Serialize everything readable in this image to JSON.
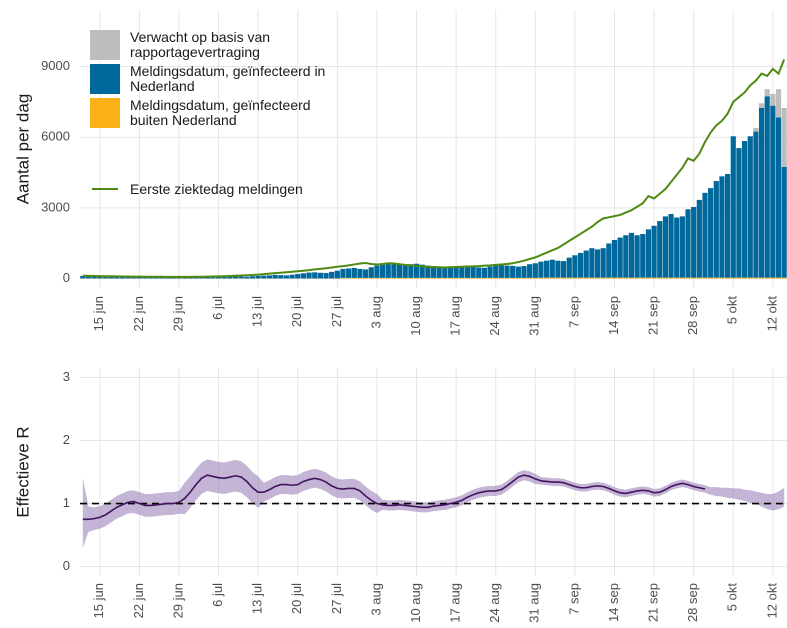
{
  "chart_data": [
    {
      "type": "bar",
      "ylabel": "Aantal per dag",
      "categories": [
        null,
        null,
        null,
        "15 jun",
        null,
        null,
        null,
        null,
        null,
        null,
        "22 jun",
        null,
        null,
        null,
        null,
        null,
        null,
        "29 jun",
        null,
        null,
        null,
        null,
        null,
        null,
        "6 jul",
        null,
        null,
        null,
        null,
        null,
        null,
        "13 jul",
        null,
        null,
        null,
        null,
        null,
        null,
        "20 jul",
        null,
        null,
        null,
        null,
        null,
        null,
        "27 jul",
        null,
        null,
        null,
        null,
        null,
        null,
        "3 aug",
        null,
        null,
        null,
        null,
        null,
        null,
        "10 aug",
        null,
        null,
        null,
        null,
        null,
        null,
        "17 aug",
        null,
        null,
        null,
        null,
        null,
        null,
        "24 aug",
        null,
        null,
        null,
        null,
        null,
        null,
        "31 aug",
        null,
        null,
        null,
        null,
        null,
        null,
        "7 sep",
        null,
        null,
        null,
        null,
        null,
        null,
        "14 sep",
        null,
        null,
        null,
        null,
        null,
        null,
        "21 sep",
        null,
        null,
        null,
        null,
        null,
        null,
        "28 sep",
        null,
        null,
        null,
        null,
        null,
        null,
        "5 okt",
        null,
        null,
        null,
        null,
        null,
        null,
        "12 okt",
        null,
        null
      ],
      "series": [
        {
          "name": "Verwacht op basis van rapportagevertraging",
          "color": "#bdbdbd",
          "values": [
            0,
            0,
            0,
            0,
            0,
            0,
            0,
            0,
            0,
            0,
            0,
            0,
            0,
            0,
            0,
            0,
            0,
            0,
            0,
            0,
            0,
            0,
            0,
            0,
            0,
            0,
            0,
            0,
            0,
            0,
            0,
            0,
            0,
            0,
            0,
            0,
            0,
            0,
            0,
            0,
            0,
            0,
            0,
            0,
            0,
            0,
            0,
            0,
            0,
            0,
            0,
            0,
            0,
            0,
            0,
            0,
            0,
            0,
            0,
            0,
            0,
            0,
            0,
            0,
            0,
            0,
            0,
            0,
            0,
            0,
            0,
            0,
            0,
            0,
            0,
            0,
            0,
            0,
            0,
            0,
            0,
            0,
            0,
            0,
            0,
            0,
            0,
            0,
            0,
            0,
            0,
            0,
            0,
            0,
            0,
            0,
            0,
            0,
            0,
            0,
            0,
            0,
            0,
            0,
            0,
            0,
            0,
            0,
            0,
            0,
            0,
            0,
            0,
            0,
            0,
            0,
            0,
            0,
            0,
            150,
            200,
            300,
            500,
            1200,
            2500
          ]
        },
        {
          "name": "Meldingsdatum, geïnfecteerd in Nederland",
          "color": "#01689b",
          "values": [
            110,
            100,
            90,
            95,
            105,
            100,
            90,
            85,
            90,
            80,
            85,
            80,
            75,
            70,
            70,
            65,
            60,
            70,
            60,
            65,
            70,
            60,
            55,
            60,
            70,
            80,
            85,
            90,
            80,
            75,
            95,
            110,
            120,
            130,
            150,
            140,
            130,
            160,
            190,
            220,
            250,
            260,
            240,
            230,
            280,
            330,
            380,
            400,
            420,
            380,
            360,
            450,
            520,
            560,
            580,
            600,
            560,
            520,
            580,
            600,
            560,
            520,
            500,
            450,
            420,
            480,
            490,
            500,
            480,
            470,
            440,
            430,
            480,
            520,
            540,
            520,
            510,
            480,
            500,
            580,
            620,
            680,
            720,
            760,
            720,
            700,
            850,
            950,
            1050,
            1150,
            1250,
            1200,
            1250,
            1450,
            1600,
            1700,
            1800,
            1900,
            1800,
            1850,
            2050,
            2200,
            2400,
            2600,
            2700,
            2550,
            2600,
            2900,
            3000,
            3300,
            3600,
            3800,
            4100,
            4300,
            4400,
            6000,
            5500,
            5800,
            6000,
            6200,
            7200,
            7700,
            7300,
            6800,
            4700
          ]
        },
        {
          "name": "Meldingsdatum, geïnfecteerd buiten Nederland",
          "color": "#f9b115",
          "values": [
            5,
            5,
            5,
            5,
            5,
            5,
            5,
            5,
            5,
            5,
            5,
            5,
            5,
            5,
            5,
            5,
            5,
            5,
            5,
            5,
            5,
            5,
            5,
            5,
            5,
            5,
            5,
            5,
            5,
            5,
            5,
            5,
            5,
            5,
            5,
            5,
            5,
            5,
            5,
            5,
            5,
            5,
            5,
            5,
            5,
            5,
            30,
            30,
            30,
            30,
            30,
            30,
            30,
            30,
            30,
            30,
            30,
            30,
            30,
            30,
            30,
            30,
            30,
            30,
            30,
            30,
            30,
            30,
            30,
            30,
            30,
            30,
            30,
            30,
            30,
            30,
            30,
            30,
            30,
            30,
            30,
            40,
            40,
            40,
            40,
            40,
            40,
            40,
            40,
            40,
            40,
            40,
            40,
            40,
            40,
            40,
            40,
            40,
            40,
            40,
            40,
            40,
            40,
            40,
            40,
            40,
            40,
            40,
            40,
            40,
            40,
            40,
            40,
            40,
            40,
            40,
            40,
            40,
            40,
            40,
            40,
            40,
            40,
            40,
            40
          ]
        },
        {
          "name": "Eerste ziektedag meldingen",
          "type": "line",
          "color": "#4f8a10",
          "values": [
            120,
            115,
            110,
            105,
            100,
            100,
            95,
            90,
            90,
            85,
            85,
            80,
            80,
            75,
            75,
            70,
            70,
            70,
            70,
            70,
            75,
            80,
            85,
            90,
            95,
            100,
            110,
            120,
            130,
            140,
            150,
            170,
            190,
            210,
            230,
            250,
            270,
            290,
            310,
            330,
            360,
            390,
            410,
            440,
            470,
            500,
            530,
            560,
            600,
            640,
            660,
            620,
            600,
            620,
            650,
            640,
            610,
            580,
            560,
            540,
            520,
            500,
            490,
            480,
            470,
            480,
            490,
            500,
            510,
            520,
            530,
            550,
            560,
            580,
            600,
            620,
            650,
            700,
            760,
            830,
            900,
            1000,
            1100,
            1200,
            1300,
            1450,
            1600,
            1750,
            1900,
            2050,
            2200,
            2400,
            2550,
            2600,
            2650,
            2700,
            2800,
            2900,
            3050,
            3200,
            3500,
            3400,
            3600,
            3800,
            4100,
            4400,
            4700,
            5100,
            5000,
            5300,
            5800,
            6200,
            6500,
            6700,
            7000,
            7500,
            7700,
            7900,
            8200,
            8400,
            8700,
            8600,
            8900,
            8700,
            9300
          ]
        }
      ],
      "ylim": [
        -400,
        11400
      ],
      "yticks": [
        0,
        3000,
        6000,
        9000
      ],
      "grid": true
    },
    {
      "type": "line",
      "ylabel": "Effectieve R",
      "categories": [
        null,
        null,
        null,
        "15 jun",
        null,
        null,
        null,
        null,
        null,
        null,
        "22 jun",
        null,
        null,
        null,
        null,
        null,
        null,
        "29 jun",
        null,
        null,
        null,
        null,
        null,
        null,
        "6 jul",
        null,
        null,
        null,
        null,
        null,
        null,
        "13 jul",
        null,
        null,
        null,
        null,
        null,
        null,
        "20 jul",
        null,
        null,
        null,
        null,
        null,
        null,
        "27 jul",
        null,
        null,
        null,
        null,
        null,
        null,
        "3 aug",
        null,
        null,
        null,
        null,
        null,
        null,
        "10 aug",
        null,
        null,
        null,
        null,
        null,
        null,
        "17 aug",
        null,
        null,
        null,
        null,
        null,
        null,
        "24 aug",
        null,
        null,
        null,
        null,
        null,
        null,
        "31 aug",
        null,
        null,
        null,
        null,
        null,
        null,
        "7 sep",
        null,
        null,
        null,
        null,
        null,
        null,
        "14 sep",
        null,
        null,
        null,
        null,
        null,
        null,
        "21 sep",
        null,
        null,
        null,
        null,
        null,
        null,
        "28 sep",
        null,
        null,
        null,
        null,
        null,
        null,
        "5 okt",
        null,
        null,
        null,
        null,
        null,
        null,
        "12 okt",
        null,
        null
      ],
      "color": "#42145f",
      "band_color": "#a48cbf",
      "values": [
        0.75,
        0.75,
        0.76,
        0.78,
        0.82,
        0.88,
        0.94,
        0.98,
        1.02,
        1.03,
        1.0,
        0.97,
        0.97,
        0.98,
        0.99,
        1.0,
        1.0,
        1.02,
        1.08,
        1.18,
        1.3,
        1.4,
        1.45,
        1.43,
        1.41,
        1.4,
        1.42,
        1.44,
        1.42,
        1.35,
        1.25,
        1.18,
        1.18,
        1.22,
        1.27,
        1.3,
        1.3,
        1.29,
        1.3,
        1.35,
        1.38,
        1.4,
        1.38,
        1.34,
        1.28,
        1.24,
        1.23,
        1.24,
        1.24,
        1.2,
        1.12,
        1.05,
        1.0,
        0.98,
        0.97,
        0.97,
        0.98,
        0.97,
        0.96,
        0.95,
        0.94,
        0.94,
        0.96,
        0.97,
        0.98,
        1.0,
        1.02,
        1.05,
        1.1,
        1.14,
        1.17,
        1.19,
        1.2,
        1.2,
        1.22,
        1.28,
        1.35,
        1.42,
        1.45,
        1.43,
        1.39,
        1.36,
        1.35,
        1.34,
        1.34,
        1.33,
        1.3,
        1.27,
        1.25,
        1.25,
        1.27,
        1.28,
        1.27,
        1.24,
        1.2,
        1.17,
        1.16,
        1.18,
        1.2,
        1.21,
        1.2,
        1.17,
        1.18,
        1.22,
        1.27,
        1.3,
        1.32,
        1.3,
        1.27,
        1.25,
        1.23,
        null,
        null,
        null,
        null,
        null,
        null,
        null,
        null,
        null,
        null,
        null,
        null,
        null,
        null
      ],
      "band_lower": [
        0.3,
        0.55,
        0.58,
        0.6,
        0.64,
        0.7,
        0.76,
        0.8,
        0.84,
        0.85,
        0.82,
        0.79,
        0.79,
        0.8,
        0.81,
        0.82,
        0.82,
        0.84,
        0.83,
        0.93,
        1.05,
        1.15,
        1.2,
        1.18,
        1.16,
        1.15,
        1.17,
        1.19,
        1.17,
        1.1,
        1.0,
        0.93,
        1.03,
        1.07,
        1.12,
        1.15,
        1.15,
        1.14,
        1.15,
        1.2,
        1.23,
        1.25,
        1.23,
        1.19,
        1.13,
        1.09,
        1.08,
        1.09,
        1.09,
        1.05,
        0.97,
        0.9,
        0.85,
        0.9,
        0.89,
        0.89,
        0.9,
        0.89,
        0.88,
        0.87,
        0.86,
        0.86,
        0.88,
        0.89,
        0.9,
        0.92,
        0.94,
        0.97,
        1.02,
        1.06,
        1.09,
        1.11,
        1.12,
        1.12,
        1.14,
        1.2,
        1.27,
        1.34,
        1.37,
        1.35,
        1.31,
        1.3,
        1.29,
        1.28,
        1.28,
        1.27,
        1.24,
        1.21,
        1.19,
        1.19,
        1.21,
        1.22,
        1.21,
        1.18,
        1.14,
        1.11,
        1.1,
        1.12,
        1.14,
        1.15,
        1.14,
        1.11,
        1.12,
        1.16,
        1.21,
        1.24,
        1.26,
        1.24,
        1.21,
        1.19,
        1.17,
        1.14,
        1.12,
        1.11,
        1.09,
        1.08,
        1.06,
        1.04,
        1.01,
        0.99,
        0.95,
        0.91,
        0.89,
        0.91,
        0.95
      ],
      "band_upper": [
        1.4,
        0.95,
        0.94,
        0.96,
        1.0,
        1.06,
        1.12,
        1.16,
        1.2,
        1.21,
        1.18,
        1.15,
        1.15,
        1.16,
        1.17,
        1.18,
        1.18,
        1.2,
        1.33,
        1.43,
        1.55,
        1.65,
        1.7,
        1.68,
        1.66,
        1.65,
        1.67,
        1.69,
        1.67,
        1.6,
        1.5,
        1.43,
        1.33,
        1.37,
        1.42,
        1.45,
        1.45,
        1.44,
        1.45,
        1.5,
        1.53,
        1.55,
        1.53,
        1.49,
        1.43,
        1.39,
        1.38,
        1.39,
        1.39,
        1.35,
        1.27,
        1.2,
        1.15,
        1.06,
        1.05,
        1.05,
        1.06,
        1.05,
        1.04,
        1.03,
        1.02,
        1.02,
        1.04,
        1.05,
        1.06,
        1.08,
        1.1,
        1.13,
        1.18,
        1.22,
        1.25,
        1.27,
        1.28,
        1.28,
        1.3,
        1.36,
        1.43,
        1.5,
        1.53,
        1.51,
        1.47,
        1.42,
        1.41,
        1.4,
        1.4,
        1.39,
        1.36,
        1.33,
        1.31,
        1.31,
        1.33,
        1.34,
        1.33,
        1.3,
        1.26,
        1.23,
        1.22,
        1.24,
        1.26,
        1.27,
        1.26,
        1.23,
        1.24,
        1.28,
        1.33,
        1.36,
        1.38,
        1.36,
        1.33,
        1.31,
        1.29,
        1.26,
        1.26,
        1.25,
        1.25,
        1.24,
        1.24,
        1.22,
        1.21,
        1.19,
        1.17,
        1.15,
        1.15,
        1.19,
        1.25
      ],
      "hline": 1,
      "ylim": [
        -0.15,
        3.15
      ],
      "yticks": [
        0,
        1,
        2,
        3
      ],
      "grid": true
    }
  ]
}
